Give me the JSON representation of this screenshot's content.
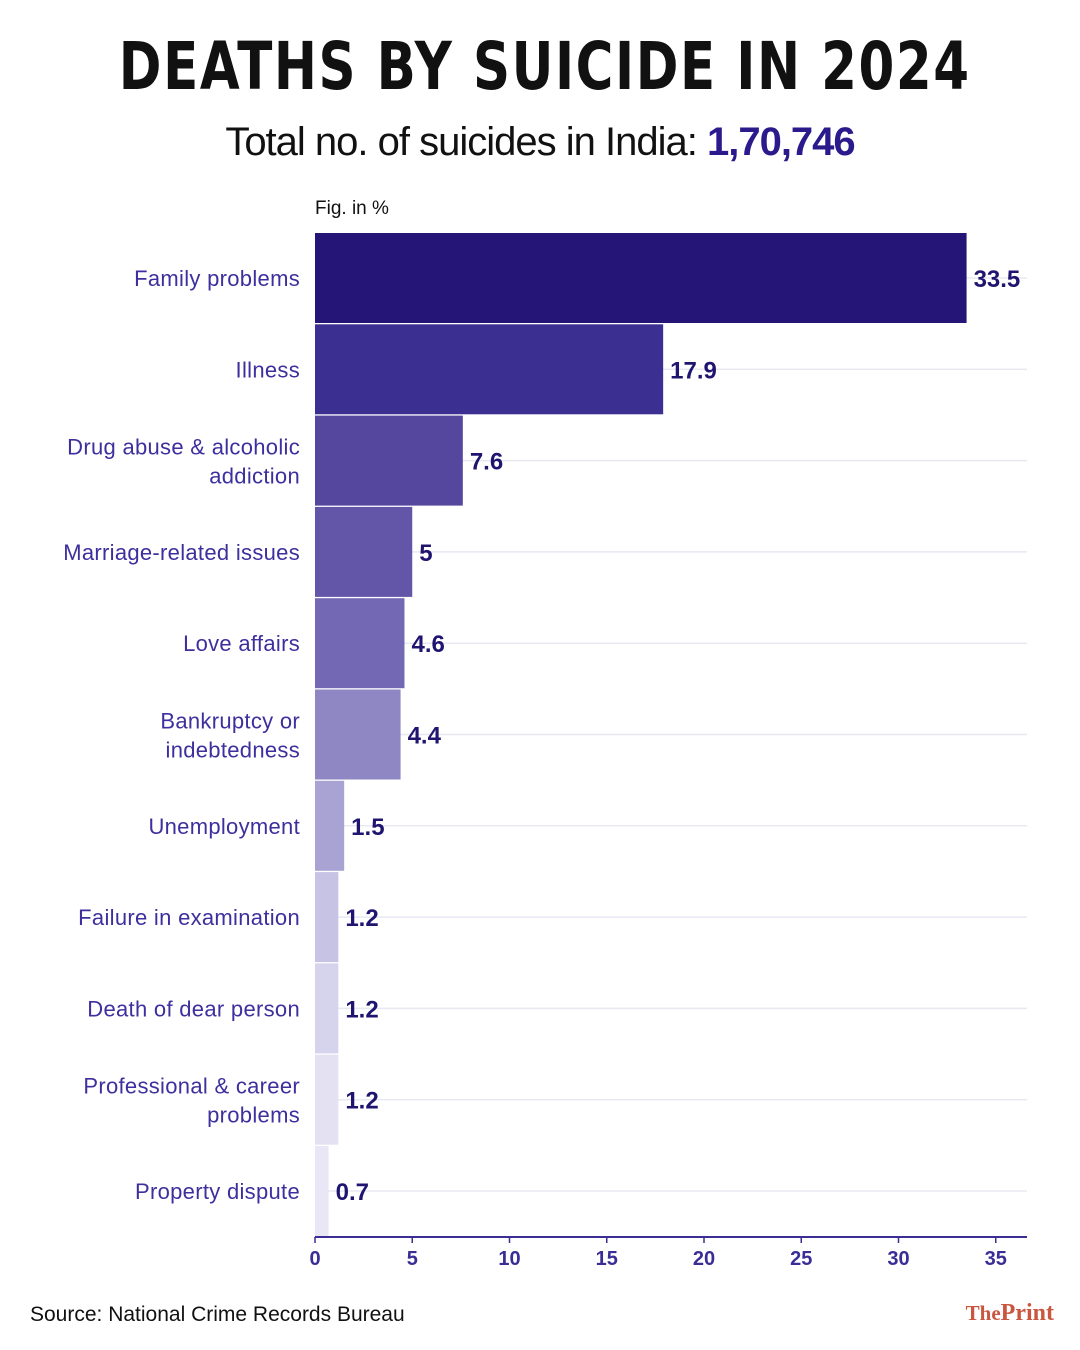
{
  "header": {
    "title": "DEATHS BY SUICIDE IN 2024",
    "subtitle_prefix": "Total no. of suicides in India:",
    "subtitle_total": "1,70,746"
  },
  "fig_note": "Fig. in %",
  "footer": {
    "source": "Source: National Crime Records Bureau",
    "logo_the": "The",
    "logo_print": "Print"
  },
  "colors": {
    "accent": "#2a1a8c",
    "label_text": "#3d2f9e",
    "grid": "#e8e8f3",
    "bars": [
      "#241577",
      "#3c2f92",
      "#54479d",
      "#6356a9",
      "#7368b4",
      "#8e87c3",
      "#a8a3d2",
      "#c7c3e4",
      "#d6d3ec",
      "#e3e1f2",
      "#e9e7f5"
    ]
  },
  "chart_data": {
    "type": "bar",
    "orientation": "horizontal",
    "categories": [
      "Family problems",
      "Illness",
      "Drug abuse & alcoholic addiction",
      "Marriage-related issues",
      "Love affairs",
      "Bankruptcy or indebtedness",
      "Unemployment",
      "Failure in examination",
      "Death of dear person",
      "Professional & career problems",
      "Property dispute"
    ],
    "values": [
      33.5,
      17.9,
      7.6,
      5,
      4.6,
      4.4,
      1.5,
      1.2,
      1.2,
      1.2,
      0.7
    ],
    "value_labels": [
      "33.5",
      "17.9",
      "7.6",
      "5",
      "4.6",
      "4.4",
      "1.5",
      "1.2",
      "1.2",
      "1.2",
      "0.7"
    ],
    "xlim": [
      0,
      35
    ],
    "xticks": [
      0,
      5,
      10,
      15,
      20,
      25,
      30,
      35
    ],
    "grid": true
  }
}
